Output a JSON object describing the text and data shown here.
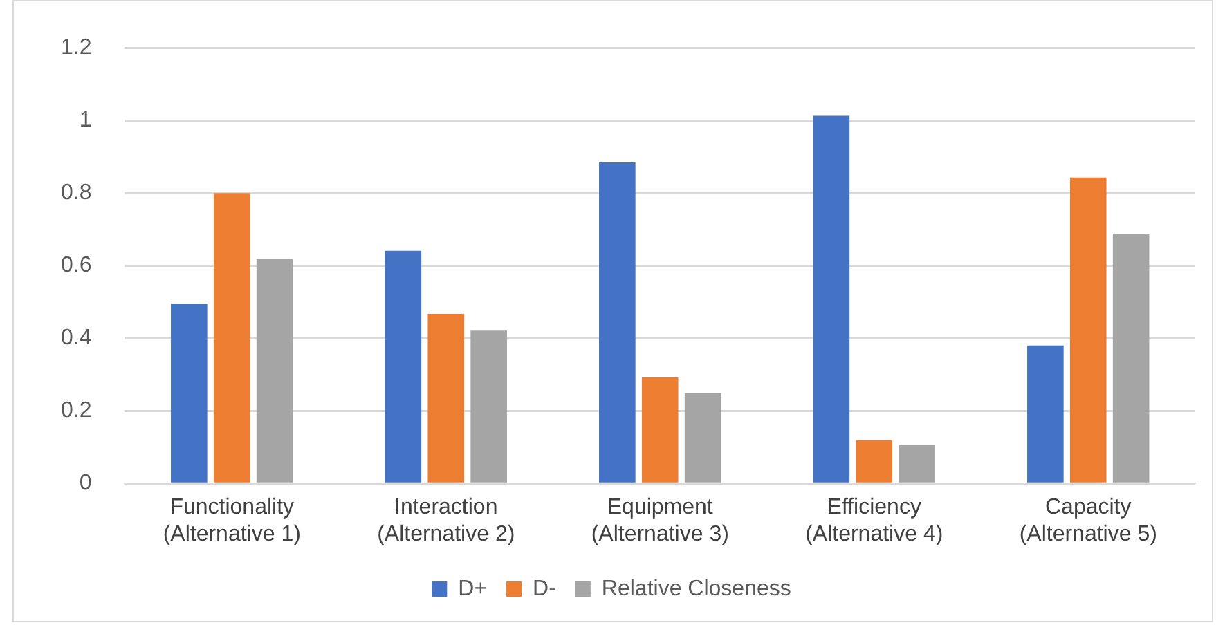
{
  "chart_data": {
    "type": "bar",
    "categories": [
      "Functionality (Alternative 1)",
      "Interaction (Alternative 2)",
      "Equipment (Alternative 3)",
      "Efficiency (Alternative 4)",
      "Capacity (Alternative 5)"
    ],
    "series": [
      {
        "name": "D+",
        "color": "#4472c4",
        "values": [
          0.495,
          0.641,
          0.884,
          1.013,
          0.38
        ]
      },
      {
        "name": "D-",
        "color": "#ed7d31",
        "values": [
          0.8,
          0.467,
          0.292,
          0.119,
          0.843
        ]
      },
      {
        "name": "Relative Closeness",
        "color": "#a5a5a5",
        "values": [
          0.618,
          0.421,
          0.248,
          0.105,
          0.688
        ]
      }
    ],
    "ylim": [
      0,
      1.2
    ],
    "yticks": [
      0,
      0.2,
      0.4,
      0.6,
      0.8,
      1,
      1.2
    ],
    "grid": "y",
    "legend": "bottom"
  }
}
